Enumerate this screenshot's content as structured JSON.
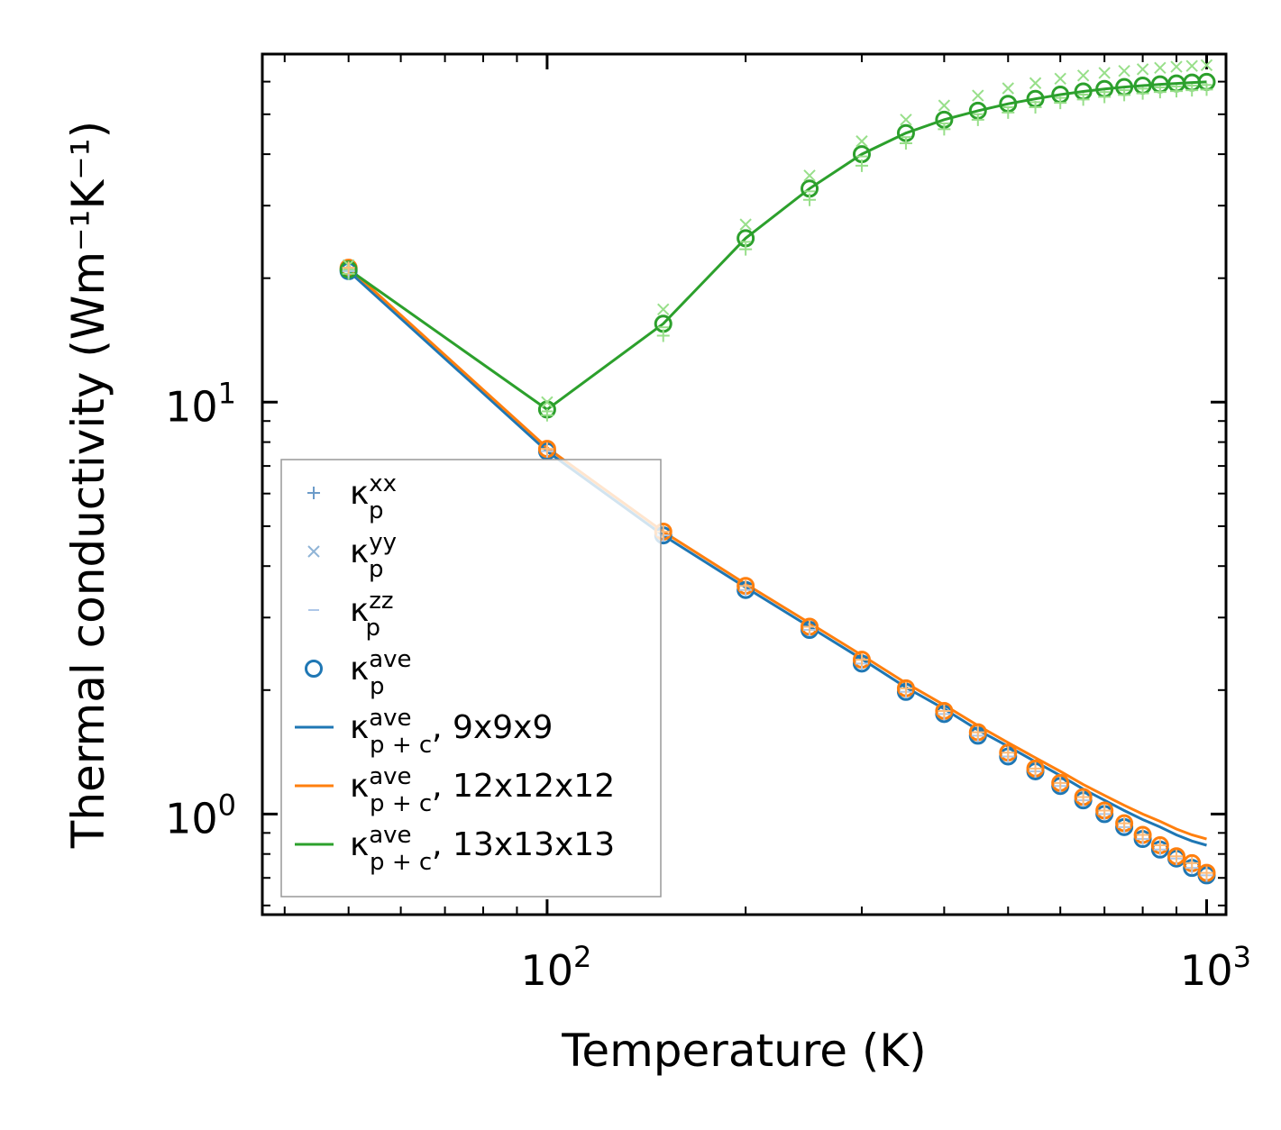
{
  "chart_data": {
    "type": "line",
    "xscale": "log",
    "yscale": "log",
    "xlabel": "Temperature (K)",
    "ylabel": "Thermal conductivity (Wm⁻¹K⁻¹)",
    "xlim": [
      37,
      1070
    ],
    "ylim": [
      0.57,
      70
    ],
    "x_ticks": [
      {
        "value": 100,
        "base": "10",
        "exp": "2"
      },
      {
        "value": 1000,
        "base": "10",
        "exp": "3"
      }
    ],
    "y_ticks": [
      {
        "value": 1,
        "base": "10",
        "exp": "0"
      },
      {
        "value": 10,
        "base": "10",
        "exp": "1"
      }
    ],
    "colors": {
      "blue": "#1f77b4",
      "orange": "#ff7f0e",
      "green": "#2ca02c",
      "light_blue": "#aec7e8",
      "light_orange": "#ffbb78",
      "light_green": "#98df8a"
    },
    "x": [
      50,
      100,
      150,
      200,
      250,
      300,
      350,
      400,
      450,
      500,
      550,
      600,
      650,
      700,
      750,
      800,
      850,
      900,
      950,
      1000
    ],
    "series": [
      {
        "name": "kappa_p+c ave 9x9x9 (line)",
        "color": "#1f77b4",
        "kind": "line",
        "values": [
          20.8,
          7.6,
          4.75,
          3.55,
          2.85,
          2.38,
          2.03,
          1.8,
          1.6,
          1.46,
          1.34,
          1.24,
          1.15,
          1.08,
          1.02,
          0.97,
          0.93,
          0.89,
          0.86,
          0.84
        ]
      },
      {
        "name": "kappa_p+c ave 12x12x12 (line)",
        "color": "#ff7f0e",
        "kind": "line",
        "values": [
          21.2,
          7.75,
          4.85,
          3.62,
          2.91,
          2.43,
          2.08,
          1.84,
          1.64,
          1.49,
          1.37,
          1.27,
          1.18,
          1.11,
          1.05,
          1.0,
          0.96,
          0.92,
          0.89,
          0.87
        ]
      },
      {
        "name": "kappa_p+c ave 13x13x13 (line)",
        "color": "#2ca02c",
        "kind": "line",
        "values": [
          21.0,
          9.6,
          15.5,
          25.0,
          33.0,
          40.0,
          45.0,
          48.5,
          51.0,
          53.0,
          54.5,
          55.8,
          56.8,
          57.6,
          58.2,
          58.7,
          59.1,
          59.4,
          59.7,
          59.9
        ]
      },
      {
        "name": "kappa_p ave 9x9x9 (markers)",
        "color": "#1f77b4",
        "kind": "circle",
        "values": [
          20.8,
          7.6,
          4.75,
          3.5,
          2.8,
          2.32,
          1.98,
          1.75,
          1.55,
          1.38,
          1.27,
          1.17,
          1.08,
          1.0,
          0.93,
          0.87,
          0.82,
          0.78,
          0.74,
          0.71
        ]
      },
      {
        "name": "kappa_p ave 12x12x12 (markers)",
        "color": "#ff7f0e",
        "kind": "circle",
        "values": [
          21.2,
          7.7,
          4.85,
          3.58,
          2.85,
          2.37,
          2.02,
          1.78,
          1.58,
          1.41,
          1.29,
          1.19,
          1.1,
          1.02,
          0.95,
          0.89,
          0.84,
          0.79,
          0.76,
          0.72
        ]
      },
      {
        "name": "kappa_p ave 13x13x13 (markers)",
        "color": "#2ca02c",
        "kind": "circle",
        "values": [
          21.0,
          9.6,
          15.5,
          25.0,
          33.0,
          40.0,
          45.0,
          48.5,
          51.0,
          53.0,
          54.5,
          55.8,
          56.8,
          57.6,
          58.2,
          58.7,
          59.1,
          59.4,
          59.7,
          59.9
        ]
      },
      {
        "name": "kappa_p xx 13x13x13",
        "color": "#98df8a",
        "kind": "plus",
        "values": [
          20.5,
          9.3,
          14.5,
          23.5,
          31.0,
          37.5,
          42.5,
          46.0,
          48.5,
          50.5,
          52.0,
          53.3,
          54.3,
          55.1,
          55.7,
          56.2,
          56.6,
          56.9,
          57.2,
          57.4
        ]
      },
      {
        "name": "kappa_p yy 13x13x13",
        "color": "#98df8a",
        "kind": "x",
        "values": [
          21.5,
          10.0,
          16.8,
          27.0,
          35.5,
          43.0,
          48.5,
          52.5,
          55.5,
          57.8,
          59.5,
          61.0,
          62.1,
          63.0,
          63.7,
          64.3,
          64.8,
          65.2,
          65.5,
          65.8
        ]
      },
      {
        "name": "kappa_p zz 13x13x13",
        "color": "#98df8a",
        "kind": "dash",
        "values": [
          21.0,
          9.5,
          15.2,
          24.5,
          32.5,
          39.5,
          44.0,
          47.5,
          50.0,
          52.0,
          53.5,
          54.8,
          55.8,
          56.6,
          57.2,
          57.7,
          58.1,
          58.4,
          58.7,
          58.9
        ]
      },
      {
        "name": "kappa_p xx 9x9x9",
        "color": "#aec7e8",
        "kind": "plus",
        "values": [
          20.8,
          7.6,
          4.75,
          3.5,
          2.8,
          2.32,
          1.98,
          1.75,
          1.55,
          1.38,
          1.27,
          1.17,
          1.08,
          1.0,
          0.93,
          0.87,
          0.82,
          0.78,
          0.74,
          0.71
        ]
      },
      {
        "name": "kappa_p xx 12x12x12",
        "color": "#ffbb78",
        "kind": "plus",
        "values": [
          21.2,
          7.7,
          4.85,
          3.58,
          2.85,
          2.37,
          2.02,
          1.78,
          1.58,
          1.41,
          1.29,
          1.19,
          1.1,
          1.02,
          0.95,
          0.89,
          0.84,
          0.79,
          0.76,
          0.72
        ]
      }
    ],
    "legend": {
      "placement": "lower-left",
      "entries": [
        {
          "kind": "plus",
          "color": "#6c9bc9",
          "sym": "κ",
          "sub": "p",
          "sup": "xx",
          "suffix": ""
        },
        {
          "kind": "x",
          "color": "#8fb4d6",
          "sym": "κ",
          "sub": "p",
          "sup": "yy",
          "suffix": ""
        },
        {
          "kind": "dash",
          "color": "#aec7e8",
          "sym": "κ",
          "sub": "p",
          "sup": "zz",
          "suffix": ""
        },
        {
          "kind": "circle",
          "color": "#1f77b4",
          "sym": "κ",
          "sub": "p",
          "sup": "ave",
          "suffix": ""
        },
        {
          "kind": "line",
          "color": "#1f77b4",
          "sym": "κ",
          "sub": "p + c",
          "sup": "ave",
          "suffix": ", 9x9x9"
        },
        {
          "kind": "line",
          "color": "#ff7f0e",
          "sym": "κ",
          "sub": "p + c",
          "sup": "ave",
          "suffix": ", 12x12x12"
        },
        {
          "kind": "line",
          "color": "#2ca02c",
          "sym": "κ",
          "sub": "p + c",
          "sup": "ave",
          "suffix": ", 13x13x13"
        }
      ]
    }
  }
}
